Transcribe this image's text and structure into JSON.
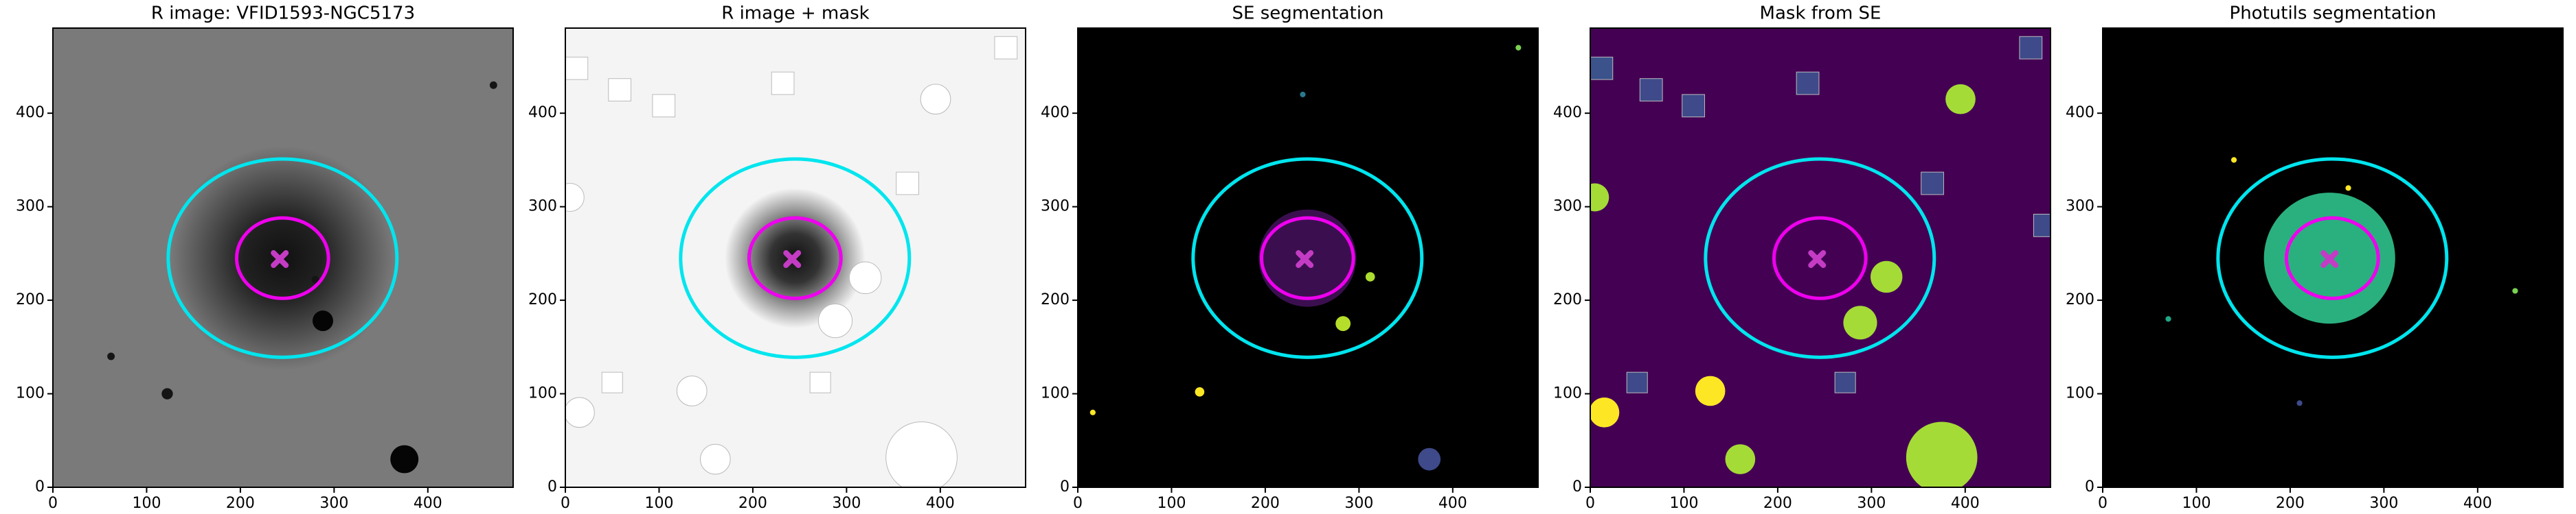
{
  "chart_data": [
    {
      "type": "image",
      "title": "R image: VFID1593-NGC5173",
      "background": "#7a7a7a",
      "xlim": [
        0,
        491
      ],
      "ylim": [
        0,
        491
      ],
      "xticks": [
        0,
        100,
        200,
        300,
        400
      ],
      "yticks": [
        0,
        100,
        200,
        300,
        400
      ],
      "sources": [
        {
          "shape": "glow",
          "x": 245,
          "y": 245,
          "r": 120,
          "color": "#000000"
        },
        {
          "shape": "circle",
          "x": 288,
          "y": 178,
          "r": 11,
          "color": "#050505"
        },
        {
          "shape": "circle",
          "x": 375,
          "y": 30,
          "r": 15,
          "color": "#050505"
        },
        {
          "shape": "circle",
          "x": 122,
          "y": 100,
          "r": 6,
          "color": "#151515"
        },
        {
          "shape": "circle",
          "x": 62,
          "y": 140,
          "r": 4,
          "color": "#151515"
        },
        {
          "shape": "circle",
          "x": 470,
          "y": 430,
          "r": 4,
          "color": "#151515"
        },
        {
          "shape": "circle",
          "x": 280,
          "y": 222,
          "r": 4,
          "color": "#151515"
        }
      ],
      "ellipses": [
        {
          "cx": 245,
          "cy": 245,
          "rx": 122,
          "ry": 106,
          "color": "#00e5ee"
        },
        {
          "cx": 245,
          "cy": 245,
          "rx": 49,
          "ry": 43,
          "color": "#ee00ee"
        }
      ],
      "marker": {
        "x": 242,
        "y": 244,
        "color": "#c43cc4"
      }
    },
    {
      "type": "image",
      "title": "R image + mask",
      "background": "#f4f4f4",
      "xlim": [
        0,
        491
      ],
      "ylim": [
        0,
        491
      ],
      "xticks": [
        0,
        100,
        200,
        300,
        400
      ],
      "yticks": [
        0,
        100,
        200,
        300,
        400
      ],
      "sources": [
        {
          "shape": "glow",
          "x": 245,
          "y": 245,
          "r": 75,
          "color": "#111111"
        },
        {
          "shape": "circle",
          "x": 380,
          "y": 32,
          "r": 38,
          "color": "#ffffff"
        },
        {
          "shape": "circle",
          "x": 288,
          "y": 178,
          "r": 18,
          "color": "#ffffff"
        },
        {
          "shape": "circle",
          "x": 320,
          "y": 224,
          "r": 17,
          "color": "#ffffff"
        },
        {
          "shape": "circle",
          "x": 160,
          "y": 30,
          "r": 16,
          "color": "#ffffff"
        },
        {
          "shape": "circle",
          "x": 15,
          "y": 80,
          "r": 16,
          "color": "#ffffff"
        },
        {
          "shape": "circle",
          "x": 135,
          "y": 103,
          "r": 16,
          "color": "#ffffff"
        },
        {
          "shape": "circle",
          "x": 395,
          "y": 415,
          "r": 16,
          "color": "#ffffff"
        },
        {
          "shape": "circle",
          "x": 5,
          "y": 310,
          "r": 15,
          "color": "#ffffff"
        },
        {
          "shape": "square",
          "x": 12,
          "y": 448,
          "r": 12,
          "color": "#ffffff"
        },
        {
          "shape": "square",
          "x": 58,
          "y": 425,
          "r": 12,
          "color": "#ffffff"
        },
        {
          "shape": "square",
          "x": 105,
          "y": 408,
          "r": 12,
          "color": "#ffffff"
        },
        {
          "shape": "square",
          "x": 232,
          "y": 432,
          "r": 12,
          "color": "#ffffff"
        },
        {
          "shape": "square",
          "x": 365,
          "y": 325,
          "r": 12,
          "color": "#ffffff"
        },
        {
          "shape": "square",
          "x": 470,
          "y": 470,
          "r": 12,
          "color": "#ffffff"
        },
        {
          "shape": "square",
          "x": 272,
          "y": 112,
          "r": 11,
          "color": "#ffffff"
        },
        {
          "shape": "square",
          "x": 50,
          "y": 112,
          "r": 11,
          "color": "#ffffff"
        }
      ],
      "ellipses": [
        {
          "cx": 245,
          "cy": 245,
          "rx": 122,
          "ry": 106,
          "color": "#00e5ee"
        },
        {
          "cx": 245,
          "cy": 245,
          "rx": 49,
          "ry": 43,
          "color": "#ee00ee"
        }
      ],
      "marker": {
        "x": 242,
        "y": 244,
        "color": "#c43cc4"
      }
    },
    {
      "type": "image",
      "title": "SE segmentation",
      "background": "#000000",
      "xlim": [
        0,
        491
      ],
      "ylim": [
        0,
        491
      ],
      "xticks": [
        0,
        100,
        200,
        300,
        400
      ],
      "yticks": [
        0,
        100,
        200,
        300,
        400
      ],
      "sources": [
        {
          "shape": "circle",
          "x": 245,
          "y": 245,
          "r": 52,
          "color": "#3b0f4f"
        },
        {
          "shape": "circle",
          "x": 283,
          "y": 175,
          "r": 8,
          "color": "#b5de2b"
        },
        {
          "shape": "circle",
          "x": 312,
          "y": 225,
          "r": 5,
          "color": "#addc30"
        },
        {
          "shape": "circle",
          "x": 375,
          "y": 30,
          "r": 12,
          "color": "#3e4a89"
        },
        {
          "shape": "circle",
          "x": 130,
          "y": 102,
          "r": 5,
          "color": "#fde725"
        },
        {
          "shape": "circle",
          "x": 16,
          "y": 80,
          "r": 3,
          "color": "#fde725"
        },
        {
          "shape": "circle",
          "x": 240,
          "y": 420,
          "r": 3,
          "color": "#2a788e"
        },
        {
          "shape": "circle",
          "x": 470,
          "y": 470,
          "r": 3,
          "color": "#7ad151"
        }
      ],
      "ellipses": [
        {
          "cx": 245,
          "cy": 245,
          "rx": 122,
          "ry": 106,
          "color": "#00e5ee"
        },
        {
          "cx": 245,
          "cy": 245,
          "rx": 49,
          "ry": 43,
          "color": "#ee00ee"
        }
      ],
      "marker": {
        "x": 242,
        "y": 244,
        "color": "#c43cc4"
      }
    },
    {
      "type": "image",
      "title": "Mask from SE",
      "background": "#440154",
      "xlim": [
        0,
        491
      ],
      "ylim": [
        0,
        491
      ],
      "xticks": [
        0,
        100,
        200,
        300,
        400
      ],
      "yticks": [
        0,
        100,
        200,
        300,
        400
      ],
      "sources": [
        {
          "shape": "circle",
          "x": 375,
          "y": 32,
          "r": 38,
          "color": "#a5db36"
        },
        {
          "shape": "circle",
          "x": 288,
          "y": 176,
          "r": 18,
          "color": "#a5db36"
        },
        {
          "shape": "circle",
          "x": 316,
          "y": 225,
          "r": 17,
          "color": "#a5db36"
        },
        {
          "shape": "circle",
          "x": 160,
          "y": 30,
          "r": 16,
          "color": "#a5db36"
        },
        {
          "shape": "circle",
          "x": 15,
          "y": 80,
          "r": 16,
          "color": "#fde725"
        },
        {
          "shape": "circle",
          "x": 128,
          "y": 103,
          "r": 16,
          "color": "#fde725"
        },
        {
          "shape": "circle",
          "x": 395,
          "y": 415,
          "r": 16,
          "color": "#a5db36"
        },
        {
          "shape": "circle",
          "x": 5,
          "y": 310,
          "r": 15,
          "color": "#a5db36"
        },
        {
          "shape": "square",
          "x": 12,
          "y": 448,
          "r": 12,
          "color": "#3b528b"
        },
        {
          "shape": "square",
          "x": 65,
          "y": 425,
          "r": 12,
          "color": "#3e4a89"
        },
        {
          "shape": "square",
          "x": 110,
          "y": 408,
          "r": 12,
          "color": "#3e4a89"
        },
        {
          "shape": "square",
          "x": 232,
          "y": 432,
          "r": 12,
          "color": "#3e4a89"
        },
        {
          "shape": "square",
          "x": 365,
          "y": 325,
          "r": 12,
          "color": "#3e4a89"
        },
        {
          "shape": "square",
          "x": 470,
          "y": 470,
          "r": 12,
          "color": "#3e4a89"
        },
        {
          "shape": "square",
          "x": 272,
          "y": 112,
          "r": 11,
          "color": "#3e4a89"
        },
        {
          "shape": "square",
          "x": 50,
          "y": 112,
          "r": 11,
          "color": "#3e4a89"
        },
        {
          "shape": "square",
          "x": 485,
          "y": 280,
          "r": 12,
          "color": "#3e4a89"
        }
      ],
      "ellipses": [
        {
          "cx": 245,
          "cy": 245,
          "rx": 122,
          "ry": 106,
          "color": "#00e5ee"
        },
        {
          "cx": 245,
          "cy": 245,
          "rx": 49,
          "ry": 43,
          "color": "#ee00ee"
        }
      ],
      "marker": {
        "x": 242,
        "y": 244,
        "color": "#c43cc4"
      }
    },
    {
      "type": "image",
      "title": "Photutils segmentation",
      "background": "#000000",
      "xlim": [
        0,
        491
      ],
      "ylim": [
        0,
        491
      ],
      "xticks": [
        0,
        100,
        200,
        300,
        400
      ],
      "yticks": [
        0,
        100,
        200,
        300,
        400
      ],
      "sources": [
        {
          "shape": "circle",
          "x": 242,
          "y": 245,
          "r": 70,
          "color": "#2ab07f"
        },
        {
          "shape": "circle",
          "x": 262,
          "y": 320,
          "r": 3,
          "color": "#fde725"
        },
        {
          "shape": "circle",
          "x": 440,
          "y": 210,
          "r": 3,
          "color": "#7ad151"
        },
        {
          "shape": "circle",
          "x": 140,
          "y": 350,
          "r": 3,
          "color": "#fde725"
        },
        {
          "shape": "circle",
          "x": 70,
          "y": 180,
          "r": 3,
          "color": "#22a884"
        },
        {
          "shape": "circle",
          "x": 210,
          "y": 90,
          "r": 3,
          "color": "#3e4a89"
        }
      ],
      "ellipses": [
        {
          "cx": 245,
          "cy": 245,
          "rx": 122,
          "ry": 106,
          "color": "#00e5ee"
        },
        {
          "cx": 245,
          "cy": 245,
          "rx": 49,
          "ry": 43,
          "color": "#ee00ee"
        }
      ],
      "marker": {
        "x": 242,
        "y": 244,
        "color": "#c43cc4"
      }
    }
  ]
}
